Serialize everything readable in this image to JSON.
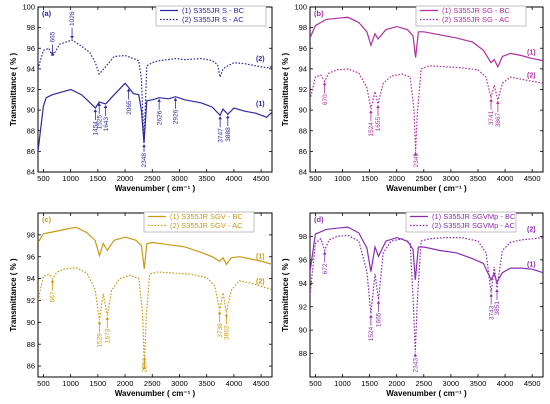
{
  "chart_data": [
    {
      "type": "line",
      "panel_label": "(a)",
      "color": "#2b2b9e",
      "xlabel": "Wavenumber ( cm⁻¹ )",
      "ylabel": "Transmittance ( % )",
      "xlim": [
        400,
        4700
      ],
      "ylim": [
        84,
        100
      ],
      "xticks": [
        500,
        1000,
        1500,
        2000,
        2500,
        3000,
        3500,
        4000,
        4500
      ],
      "yticks": [
        84,
        86,
        88,
        90,
        92,
        94,
        96,
        98,
        100
      ],
      "series": [
        {
          "name": "(1) S355JR S - BC",
          "style": "solid",
          "curve_label": "(1)",
          "x": [
            400,
            500,
            550,
            665,
            800,
            1000,
            1200,
            1300,
            1454,
            1525,
            1643,
            1800,
            2000,
            2065,
            2150,
            2250,
            2300,
            2348,
            2400,
            2500,
            2626,
            2800,
            2926,
            3100,
            3400,
            3600,
            3747,
            3800,
            3888,
            4000,
            4200,
            4400,
            4600,
            4700
          ],
          "y": [
            86,
            90.4,
            91.2,
            91.5,
            91.7,
            92,
            91.5,
            91,
            90.2,
            90.8,
            90.6,
            91.5,
            92.6,
            92.2,
            91.6,
            91.5,
            90,
            86.8,
            90.9,
            91,
            91.2,
            91.1,
            91.3,
            91,
            90.7,
            90.3,
            89.5,
            90.1,
            89.6,
            90.2,
            89.9,
            89.7,
            89.3,
            89.8
          ]
        },
        {
          "name": "(2) S355JR S - AC",
          "style": "dotted",
          "curve_label": "(2)",
          "x": [
            400,
            500,
            600,
            665,
            800,
            1026,
            1200,
            1350,
            1454,
            1525,
            1643,
            1800,
            2000,
            2100,
            2250,
            2300,
            2348,
            2400,
            2500,
            2626,
            2800,
            2926,
            3100,
            3400,
            3600,
            3700,
            3747,
            3800,
            3888,
            4000,
            4200,
            4400,
            4600,
            4700
          ],
          "y": [
            94,
            95.8,
            96,
            95.2,
            96.4,
            96.8,
            96.2,
            95.6,
            94.6,
            93.5,
            94.2,
            95.2,
            95.3,
            95.1,
            94.8,
            93,
            86.9,
            94.3,
            94.6,
            94.8,
            94.9,
            95,
            94.9,
            95,
            94.8,
            94.4,
            93.2,
            94,
            94.3,
            94.6,
            94.5,
            94.3,
            94.1,
            94.2
          ]
        }
      ],
      "annotations": [
        "665",
        "1026",
        "1454",
        "1525",
        "1643",
        "2065",
        "2348",
        "2626",
        "2926",
        "3747",
        "3888"
      ]
    },
    {
      "type": "line",
      "panel_label": "(b)",
      "color": "#b0309e",
      "xlabel": "Wavenumber ( cm⁻¹ )",
      "ylabel": "Transmittance ( % )",
      "xlim": [
        400,
        4700
      ],
      "ylim": [
        84,
        100
      ],
      "xticks": [
        500,
        1000,
        1500,
        2000,
        2500,
        3000,
        3500,
        4000,
        4500
      ],
      "yticks": [
        84,
        86,
        88,
        90,
        92,
        94,
        96,
        98,
        100
      ],
      "series": [
        {
          "name": "(1) S355JR SG - BC",
          "style": "solid",
          "curve_label": "(1)",
          "x": [
            400,
            500,
            700,
            900,
            1100,
            1300,
            1450,
            1524,
            1600,
            1655,
            1800,
            2000,
            2200,
            2300,
            2349,
            2400,
            2500,
            2800,
            3100,
            3400,
            3600,
            3741,
            3800,
            3867,
            3950,
            4100,
            4300,
            4500,
            4700
          ],
          "y": [
            97,
            98.2,
            98.8,
            98.9,
            99,
            98.5,
            97.6,
            96.3,
            97.4,
            96.9,
            97.8,
            98.1,
            97.8,
            97.2,
            95.1,
            97.6,
            97.6,
            97.3,
            97,
            96.6,
            95.8,
            94.6,
            94.9,
            94.2,
            95.2,
            95.5,
            95.3,
            95,
            94.8
          ]
        },
        {
          "name": "(2) S355JR SG - AC",
          "style": "dotted",
          "curve_label": "(2)",
          "x": [
            400,
            500,
            600,
            670,
            750,
            900,
            1100,
            1300,
            1450,
            1524,
            1600,
            1655,
            1750,
            1900,
            2100,
            2250,
            2320,
            2349,
            2380,
            2450,
            2600,
            2900,
            3200,
            3500,
            3650,
            3741,
            3800,
            3867,
            3950,
            4100,
            4300,
            4500,
            4700
          ],
          "y": [
            91,
            93.2,
            93.4,
            92.8,
            93.6,
            93.9,
            94,
            93.6,
            92.2,
            90.1,
            91.8,
            90.6,
            92.6,
            93.3,
            93.5,
            93.2,
            90,
            86,
            89.6,
            94,
            94.3,
            94.2,
            94.1,
            93.9,
            93.2,
            91.2,
            92.4,
            91,
            92.6,
            93.2,
            93,
            92.8,
            92.6
          ]
        }
      ],
      "annotations": [
        "670",
        "1524",
        "1655",
        "2349",
        "3741",
        "3867"
      ]
    },
    {
      "type": "line",
      "panel_label": "(c)",
      "color": "#c89a16",
      "xlabel": "Wavenumber ( cm⁻¹ )",
      "ylabel": "Transmittance ( % )",
      "xlim": [
        400,
        4700
      ],
      "ylim": [
        85,
        100
      ],
      "xticks": [
        500,
        1000,
        1500,
        2000,
        2500,
        3000,
        3500,
        4000,
        4500
      ],
      "yticks": [
        86,
        88,
        90,
        92,
        94,
        96,
        98
      ],
      "series": [
        {
          "name": "(1) S355JR SGV - BC",
          "style": "solid",
          "curve_label": "(1)",
          "x": [
            400,
            500,
            700,
            900,
            1100,
            1300,
            1450,
            1529,
            1600,
            1673,
            1800,
            2000,
            2200,
            2300,
            2354,
            2400,
            2500,
            2800,
            3100,
            3400,
            3600,
            3738,
            3800,
            3862,
            3950,
            4100,
            4300,
            4500,
            4700
          ],
          "y": [
            97.3,
            98.1,
            98.3,
            98.5,
            98.7,
            98.2,
            97.5,
            96.1,
            97.2,
            96.6,
            97.5,
            97.8,
            97.5,
            97,
            94.9,
            97.2,
            97.3,
            97.1,
            96.9,
            96.4,
            96,
            95.6,
            95.9,
            95.3,
            95.9,
            96,
            95.8,
            95.6,
            95.3
          ]
        },
        {
          "name": "(2) S355JR SGV - AC",
          "style": "dotted",
          "curve_label": "(2)",
          "x": [
            400,
            500,
            600,
            667,
            750,
            900,
            1100,
            1300,
            1450,
            1529,
            1600,
            1673,
            1750,
            1900,
            2100,
            2250,
            2320,
            2354,
            2390,
            2450,
            2600,
            2900,
            3200,
            3500,
            3650,
            3738,
            3800,
            3862,
            3950,
            4100,
            4300,
            4500,
            4700
          ],
          "y": [
            92,
            94.2,
            94.4,
            94,
            94.6,
            94.9,
            95,
            94.5,
            93,
            90.2,
            92.6,
            90.6,
            92.9,
            94,
            94.3,
            94,
            91,
            86.1,
            90.5,
            94.4,
            94.6,
            94.5,
            94.4,
            94.1,
            93.3,
            91.1,
            92.7,
            90.9,
            92.9,
            93.8,
            93.6,
            93.3,
            93
          ]
        }
      ],
      "annotations": [
        "667",
        "1529",
        "1673",
        "2354",
        "3738",
        "3862"
      ]
    },
    {
      "type": "line",
      "panel_label": "(d)",
      "color": "#8a2eb0",
      "xlabel": "Wavenumber ( cm⁻¹ )",
      "ylabel": "Transmittance ( % )",
      "xlim": [
        400,
        4700
      ],
      "ylim": [
        86,
        100
      ],
      "xticks": [
        500,
        1000,
        1500,
        2000,
        2500,
        3000,
        3500,
        4000,
        4500
      ],
      "yticks": [
        88,
        90,
        92,
        94,
        96,
        98
      ],
      "series": [
        {
          "name": "(1) S355JR SGVMp - BC",
          "style": "solid",
          "curve_label": "(1)",
          "x": [
            400,
            500,
            700,
            900,
            1100,
            1300,
            1450,
            1524,
            1600,
            1665,
            1800,
            2000,
            2200,
            2300,
            2343,
            2400,
            2500,
            2800,
            3100,
            3400,
            3600,
            3743,
            3800,
            3851,
            3950,
            4100,
            4300,
            4500,
            4700
          ],
          "y": [
            95,
            98.2,
            98.6,
            98.7,
            98.8,
            98.3,
            97,
            95,
            97.1,
            96.3,
            97.6,
            97.9,
            97.6,
            96.9,
            94.3,
            97.1,
            97.1,
            96.8,
            96.6,
            96.1,
            95.7,
            94.3,
            94.8,
            94.1,
            94.9,
            95.3,
            95.3,
            95.2,
            94.9
          ]
        },
        {
          "name": "(2) S355JR SGVMp - AC",
          "style": "dotted",
          "curve_label": "(2)",
          "x": [
            400,
            500,
            600,
            672,
            750,
            900,
            1100,
            1300,
            1450,
            1524,
            1600,
            1665,
            1750,
            1900,
            2100,
            2250,
            2310,
            2343,
            2380,
            2450,
            2600,
            2900,
            3200,
            3500,
            3650,
            3743,
            3800,
            3851,
            3950,
            4100,
            4300,
            4500,
            4700
          ],
          "y": [
            93,
            97.4,
            97.8,
            96.8,
            97.7,
            98,
            98.1,
            97.6,
            95,
            91.4,
            94.8,
            92.6,
            96.6,
            97.6,
            97.8,
            97.4,
            92,
            88.1,
            92.4,
            97.6,
            97.8,
            97.9,
            97.9,
            97.6,
            96.6,
            93.2,
            95.4,
            93.6,
            96.8,
            97.5,
            97.7,
            97.8,
            97.9
          ]
        }
      ],
      "annotations": [
        "672",
        "1524",
        "1665",
        "2343",
        "3743",
        "3851"
      ]
    }
  ]
}
